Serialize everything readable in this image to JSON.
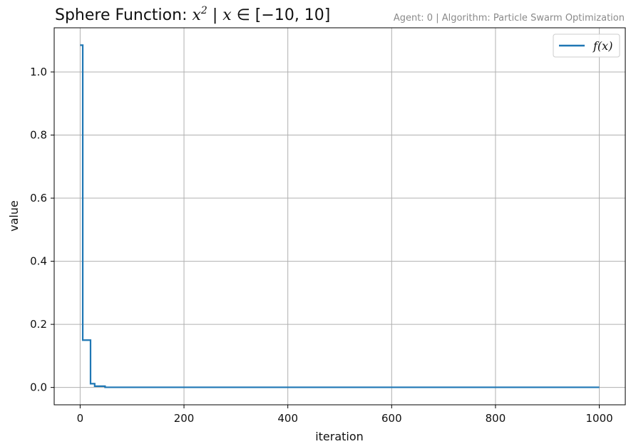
{
  "chart_data": {
    "type": "line",
    "title": "Sphere Function: x² | x ∈ [−10, 10]",
    "title_parts": {
      "prefix": "Sphere Function: ",
      "var": "x",
      "exp": "2",
      "mid": " | ",
      "var2": "x",
      "range": " ∈ [−10, 10]"
    },
    "subtitle": "Agent: 0 | Algorithm: Particle Swarm Optimization",
    "xlabel": "iteration",
    "ylabel": "value",
    "xlim": [
      -50,
      1050
    ],
    "ylim": [
      -0.055,
      1.14
    ],
    "xticks": [
      0,
      200,
      400,
      600,
      800,
      1000
    ],
    "xtick_labels": [
      "0",
      "200",
      "400",
      "600",
      "800",
      "1000"
    ],
    "yticks": [
      0.0,
      0.2,
      0.4,
      0.6,
      0.8,
      1.0
    ],
    "ytick_labels": [
      "0.0",
      "0.2",
      "0.4",
      "0.6",
      "0.8",
      "1.0"
    ],
    "grid": true,
    "legend_position": "top-right",
    "series": [
      {
        "name": "f(x)",
        "color": "#1f77b4",
        "step": true,
        "x": [
          0,
          5,
          20,
          28,
          48,
          1000
        ],
        "y": [
          1.085,
          0.15,
          0.012,
          0.004,
          0.0005,
          0.0005
        ]
      }
    ]
  }
}
